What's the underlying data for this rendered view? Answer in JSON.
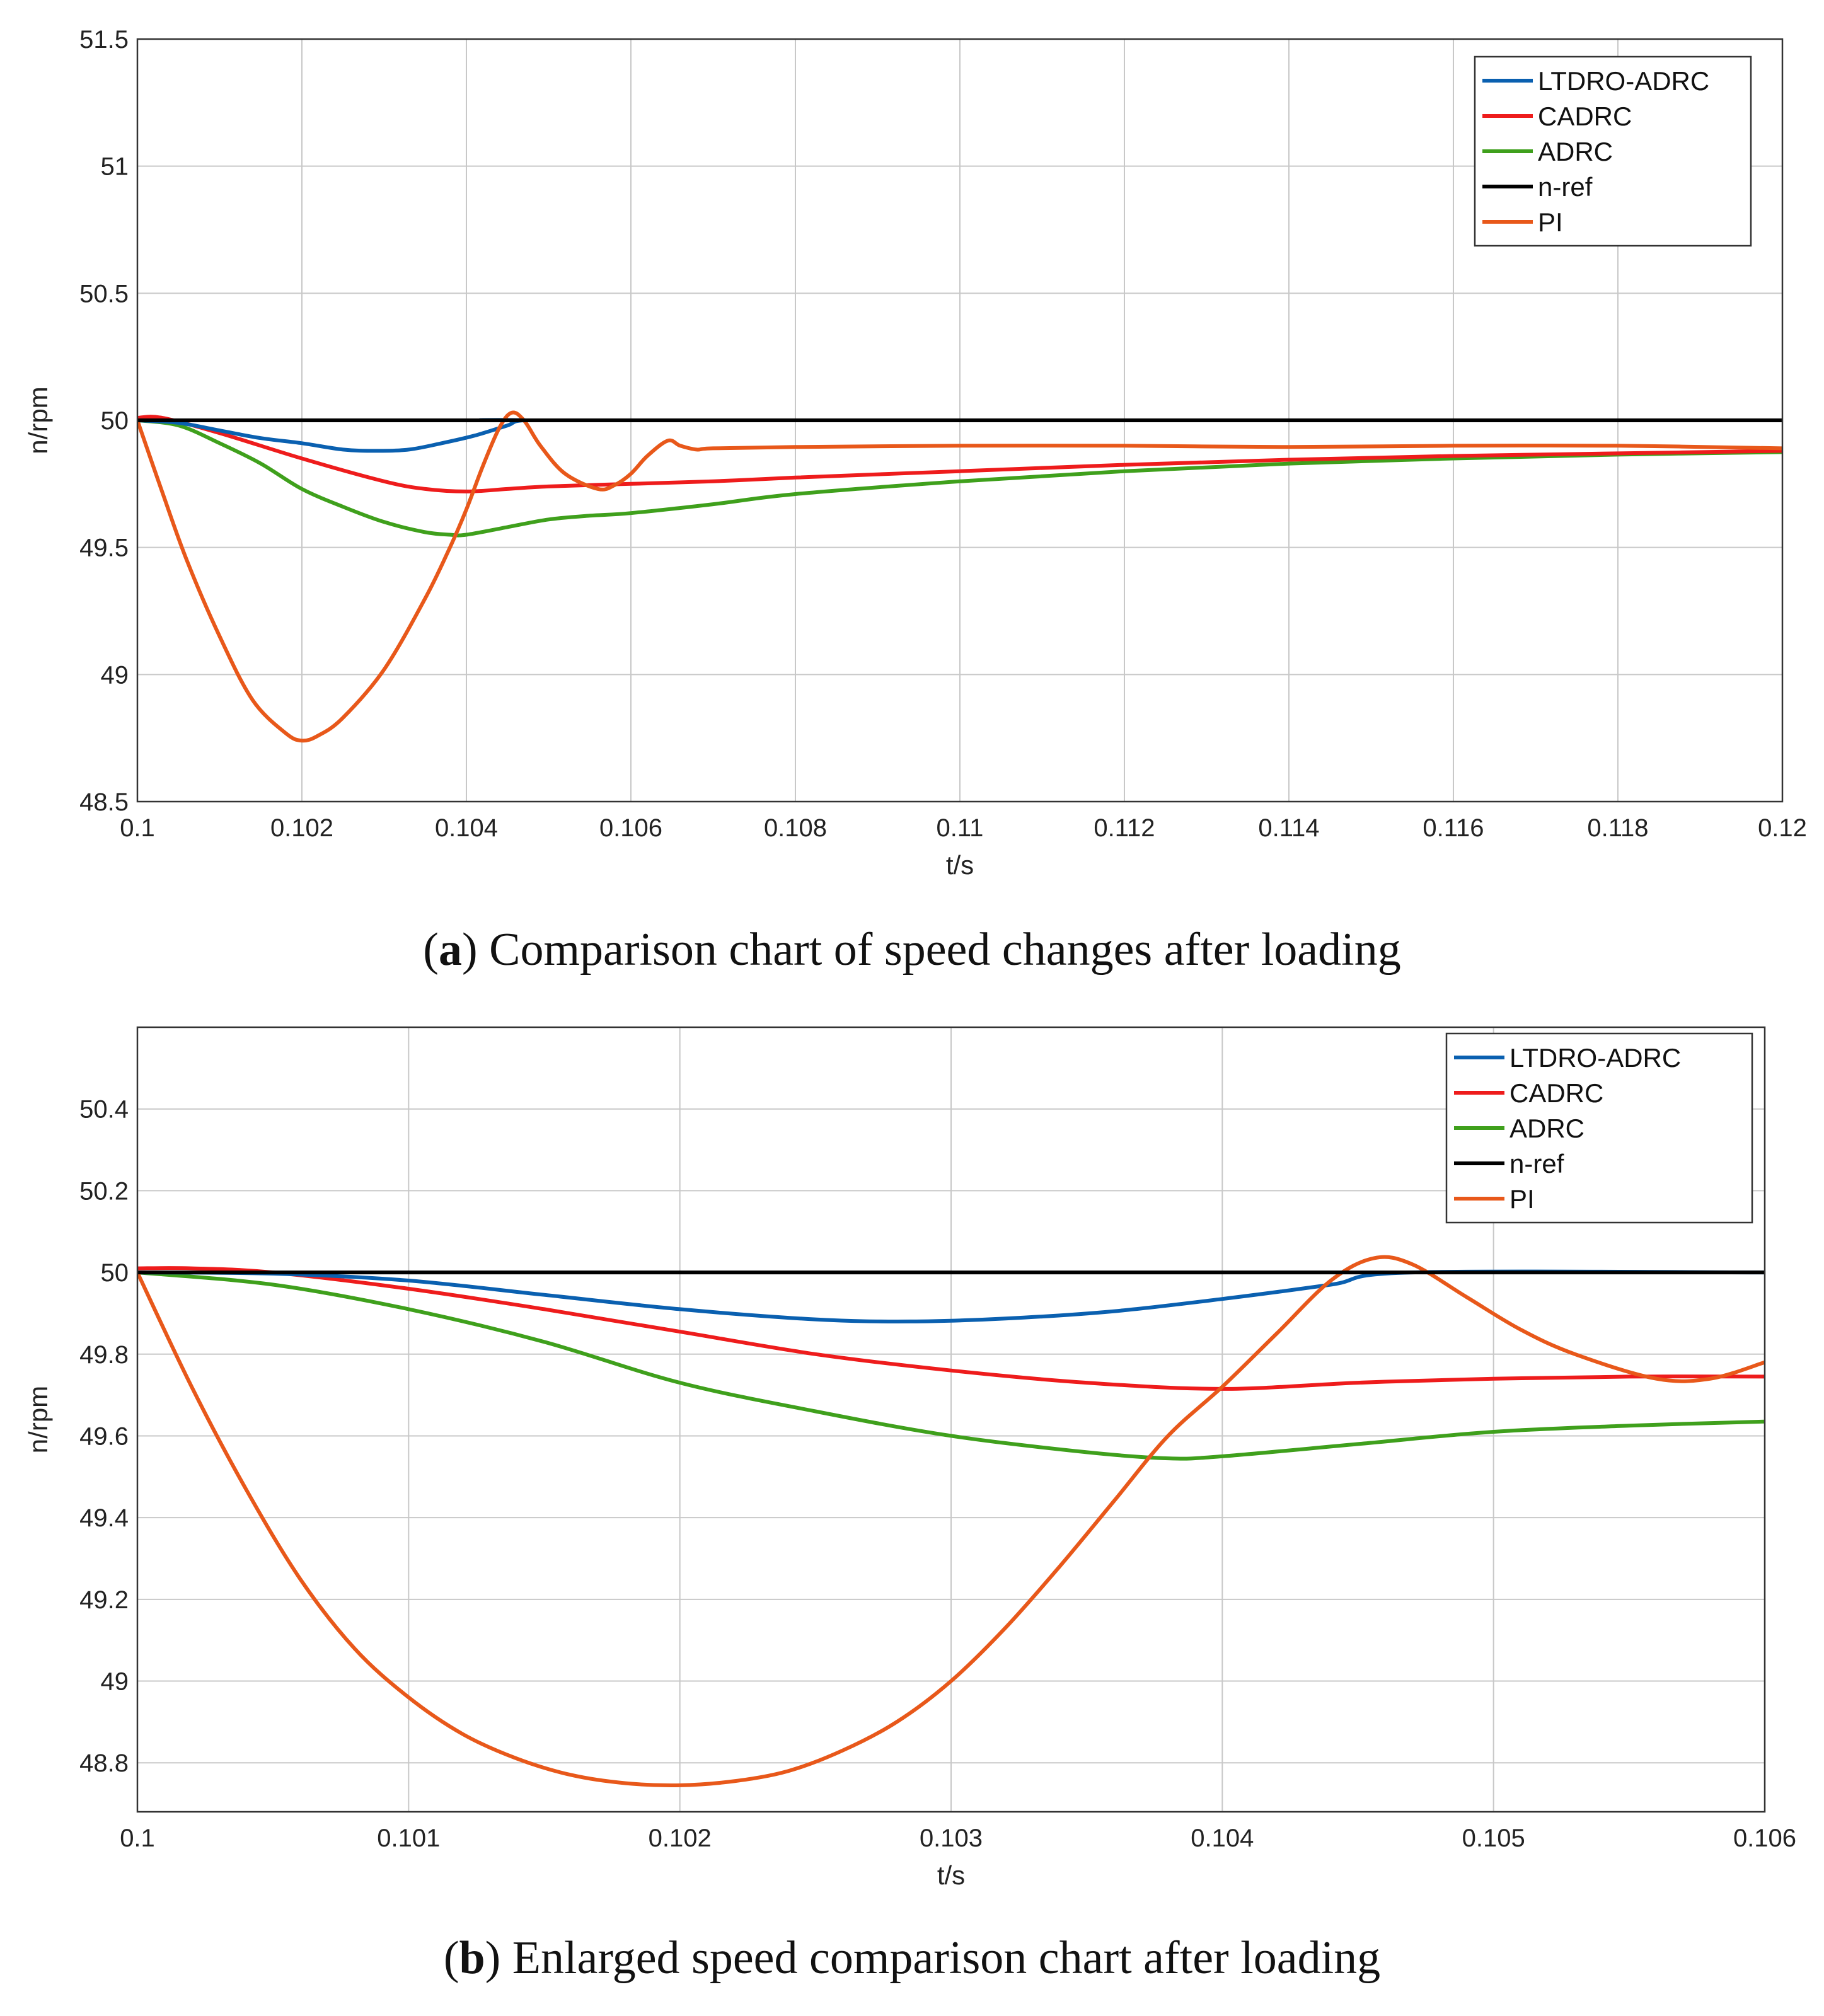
{
  "chart_data": [
    {
      "type": "line",
      "panel": "a",
      "caption_letter": "a",
      "caption_text": "Comparison chart of speed changes after loading",
      "xlabel": "t/s",
      "ylabel": "n/rpm",
      "xlim": [
        0.1,
        0.12
      ],
      "ylim": [
        48.5,
        51.5
      ],
      "xticks": [
        0.1,
        0.102,
        0.104,
        0.106,
        0.108,
        0.11,
        0.112,
        0.114,
        0.116,
        0.118,
        0.12
      ],
      "xtick_labels": [
        "0.1",
        "0.102",
        "0.104",
        "0.106",
        "0.108",
        "0.11",
        "0.112",
        "0.114",
        "0.116",
        "0.118",
        "0.12"
      ],
      "yticks": [
        48.5,
        49,
        49.5,
        50,
        50.5,
        51,
        51.5
      ],
      "ytick_labels": [
        "48.5",
        "49",
        "49.5",
        "50",
        "50.5",
        "51",
        "51.5"
      ],
      "grid": true,
      "legend_position": "top-right",
      "series": [
        {
          "name": "LTDRO-ADRC",
          "color": "#0a60b0",
          "x": [
            0.1,
            0.1005,
            0.101,
            0.1015,
            0.102,
            0.1025,
            0.1029,
            0.1033,
            0.1037,
            0.1041,
            0.1045,
            0.1047,
            0.1055,
            0.12
          ],
          "y": [
            50.0,
            49.99,
            49.96,
            49.93,
            49.91,
            49.885,
            49.88,
            49.885,
            49.91,
            49.94,
            49.98,
            50.0,
            50.0,
            50.0
          ]
        },
        {
          "name": "CADRC",
          "color": "#ee1c1c",
          "x": [
            0.1,
            0.1003,
            0.101,
            0.102,
            0.103,
            0.1035,
            0.104,
            0.1045,
            0.105,
            0.106,
            0.107,
            0.108,
            0.11,
            0.112,
            0.114,
            0.116,
            0.118,
            0.12
          ],
          "y": [
            50.01,
            50.01,
            49.95,
            49.85,
            49.76,
            49.73,
            49.72,
            49.73,
            49.74,
            49.75,
            49.76,
            49.775,
            49.8,
            49.825,
            49.845,
            49.86,
            49.87,
            49.88
          ]
        },
        {
          "name": "ADRC",
          "color": "#3fa01c",
          "x": [
            0.1,
            0.1005,
            0.101,
            0.1015,
            0.102,
            0.1025,
            0.103,
            0.1035,
            0.1038,
            0.104,
            0.1045,
            0.105,
            0.1055,
            0.106,
            0.107,
            0.108,
            0.11,
            0.112,
            0.114,
            0.116,
            0.118,
            0.12
          ],
          "y": [
            50.0,
            49.98,
            49.91,
            49.83,
            49.73,
            49.66,
            49.6,
            49.56,
            49.55,
            49.55,
            49.58,
            49.61,
            49.625,
            49.635,
            49.67,
            49.71,
            49.76,
            49.8,
            49.83,
            49.85,
            49.865,
            49.875
          ]
        },
        {
          "name": "n-ref",
          "color": "#000000",
          "x": [
            0.1,
            0.12
          ],
          "y": [
            50.0,
            50.0
          ]
        },
        {
          "name": "PI",
          "color": "#e8581a",
          "x": [
            0.1,
            0.1003,
            0.1006,
            0.101,
            0.1014,
            0.1018,
            0.102,
            0.1022,
            0.1025,
            0.103,
            0.1035,
            0.1038,
            0.104,
            0.1042,
            0.1044,
            0.10455,
            0.1047,
            0.1049,
            0.1052,
            0.1056,
            0.1058,
            0.106,
            0.1062,
            0.10645,
            0.1066,
            0.1068,
            0.107,
            0.108,
            0.11,
            0.112,
            0.114,
            0.116,
            0.118,
            0.12
          ],
          "y": [
            50.0,
            49.72,
            49.45,
            49.15,
            48.9,
            48.77,
            48.74,
            48.76,
            48.83,
            49.02,
            49.3,
            49.5,
            49.65,
            49.82,
            49.97,
            50.03,
            50.0,
            49.9,
            49.79,
            49.73,
            49.745,
            49.79,
            49.86,
            49.92,
            49.9,
            49.885,
            49.89,
            49.895,
            49.9,
            49.9,
            49.895,
            49.9,
            49.9,
            49.89
          ]
        }
      ]
    },
    {
      "type": "line",
      "panel": "b",
      "caption_letter": "b",
      "caption_text": "Enlarged speed comparison chart after loading",
      "xlabel": "t/s",
      "ylabel": "n/rpm",
      "xlim": [
        0.1,
        0.106
      ],
      "ylim": [
        48.68,
        50.6
      ],
      "xticks": [
        0.1,
        0.101,
        0.102,
        0.103,
        0.104,
        0.105,
        0.106
      ],
      "xtick_labels": [
        "0.1",
        "0.101",
        "0.102",
        "0.103",
        "0.104",
        "0.105",
        "0.106"
      ],
      "yticks": [
        48.8,
        49,
        49.2,
        49.4,
        49.6,
        49.8,
        50,
        50.2,
        50.4
      ],
      "ytick_labels": [
        "48.8",
        "49",
        "49.2",
        "49.4",
        "49.6",
        "49.8",
        "50",
        "50.2",
        "50.4"
      ],
      "grid": true,
      "legend_position": "top-right",
      "series": [
        {
          "name": "LTDRO-ADRC",
          "color": "#0a60b0",
          "x": [
            0.1,
            0.1005,
            0.101,
            0.1015,
            0.102,
            0.1025,
            0.10285,
            0.1032,
            0.1036,
            0.104,
            0.1044,
            0.1047,
            0.106
          ],
          "y": [
            50.0,
            49.997,
            49.98,
            49.945,
            49.91,
            49.885,
            49.88,
            49.887,
            49.905,
            49.935,
            49.97,
            50.0,
            50.0
          ]
        },
        {
          "name": "CADRC",
          "color": "#ee1c1c",
          "x": [
            0.1,
            0.1002,
            0.1005,
            0.101,
            0.1015,
            0.102,
            0.1025,
            0.103,
            0.1035,
            0.104,
            0.1045,
            0.105,
            0.1055,
            0.106
          ],
          "y": [
            50.01,
            50.01,
            50.0,
            49.96,
            49.91,
            49.855,
            49.8,
            49.76,
            49.73,
            49.715,
            49.73,
            49.74,
            49.745,
            49.745
          ]
        },
        {
          "name": "ADRC",
          "color": "#3fa01c",
          "x": [
            0.1,
            0.1005,
            0.101,
            0.1015,
            0.102,
            0.1025,
            0.103,
            0.1035,
            0.1038,
            0.104,
            0.1045,
            0.105,
            0.1055,
            0.106
          ],
          "y": [
            50.0,
            49.97,
            49.91,
            49.83,
            49.73,
            49.66,
            49.6,
            49.56,
            49.545,
            49.55,
            49.58,
            49.61,
            49.625,
            49.635
          ]
        },
        {
          "name": "n-ref",
          "color": "#000000",
          "x": [
            0.1,
            0.106
          ],
          "y": [
            50.0,
            50.0
          ]
        },
        {
          "name": "PI",
          "color": "#e8581a",
          "x": [
            0.1,
            0.1002,
            0.1004,
            0.1006,
            0.1008,
            0.101,
            0.1012,
            0.1014,
            0.1016,
            0.1018,
            0.102,
            0.1022,
            0.1024,
            0.1026,
            0.1028,
            0.103,
            0.1032,
            0.1034,
            0.1036,
            0.1038,
            0.104,
            0.1042,
            0.1044,
            0.10456,
            0.1047,
            0.1049,
            0.1051,
            0.1053,
            0.1056,
            0.1058,
            0.106
          ],
          "y": [
            50.0,
            49.72,
            49.47,
            49.25,
            49.08,
            48.96,
            48.87,
            48.81,
            48.77,
            48.75,
            48.745,
            48.755,
            48.78,
            48.83,
            48.9,
            49.0,
            49.13,
            49.28,
            49.44,
            49.6,
            49.72,
            49.85,
            49.98,
            50.035,
            50.02,
            49.94,
            49.86,
            49.8,
            49.74,
            49.74,
            49.78
          ]
        }
      ]
    }
  ]
}
